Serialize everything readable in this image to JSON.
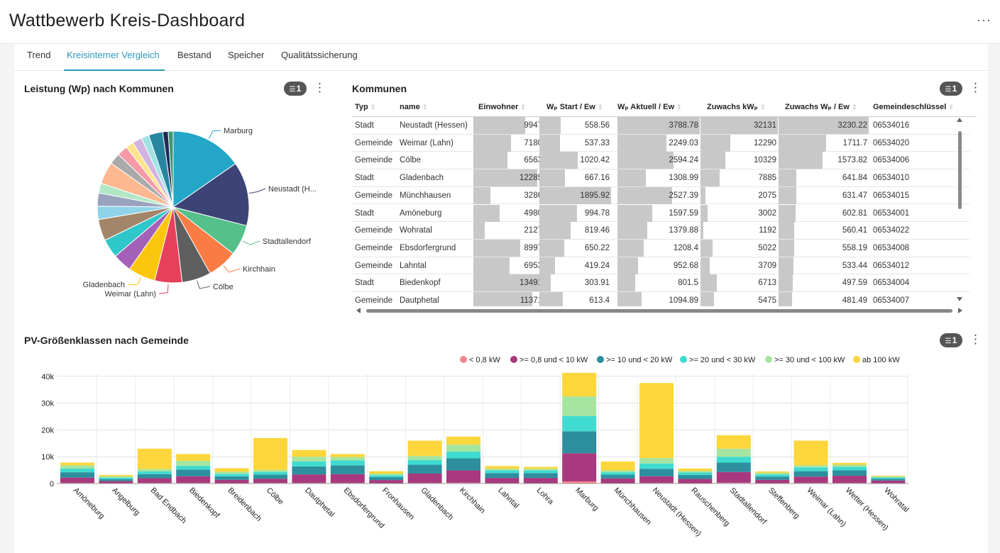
{
  "header": {
    "title": "Wattbewerb Kreis-Dashboard",
    "more": "···"
  },
  "tabs": [
    "Trend",
    "Kreisinterner Vergleich",
    "Bestand",
    "Speicher",
    "Qualitätssicherung"
  ],
  "active_tab": "Kreisinterner Vergleich",
  "pie_panel": {
    "title": "Leistung (Wp) nach Kommunen",
    "filter_count": "1",
    "labels": [
      "Marburg",
      "Neustadt (H...",
      "Stadtallendorf",
      "Kirchhain",
      "Cölbe",
      "Weimar (Lahn)",
      "Gladenbach"
    ]
  },
  "table_panel": {
    "title": "Kommunen",
    "filter_count": "1",
    "columns": [
      "Typ",
      "name",
      "Einwohner",
      "Wₚ Start / Ew",
      "Wₚ Aktuell / Ew",
      "Zuwachs kWₚ",
      "Zuwachs Wₚ / Ew",
      "Gemeindeschlüssel"
    ],
    "rows": [
      [
        "Stadt",
        "Neustadt (Hessen)",
        "9947",
        "558.56",
        "3788.78",
        "32131",
        "3230.22",
        "06534016"
      ],
      [
        "Gemeinde",
        "Weimar (Lahn)",
        "7180",
        "537.33",
        "2249.03",
        "12290",
        "1711.7",
        "06534020"
      ],
      [
        "Gemeinde",
        "Cölbe",
        "6563",
        "1020.42",
        "2594.24",
        "10329",
        "1573.82",
        "06534006"
      ],
      [
        "Stadt",
        "Gladenbach",
        "12285",
        "667.16",
        "1308.99",
        "7885",
        "641.84",
        "06534010"
      ],
      [
        "Gemeinde",
        "Münchhausen",
        "3286",
        "1895.92",
        "2527.39",
        "2075",
        "631.47",
        "06534015"
      ],
      [
        "Stadt",
        "Amöneburg",
        "4980",
        "994.78",
        "1597.59",
        "3002",
        "602.81",
        "06534001"
      ],
      [
        "Gemeinde",
        "Wohratal",
        "2127",
        "819.46",
        "1379.88",
        "1192",
        "560.41",
        "06534022"
      ],
      [
        "Gemeinde",
        "Ebsdorfergrund",
        "8997",
        "650.22",
        "1208.4",
        "5022",
        "558.19",
        "06534008"
      ],
      [
        "Gemeinde",
        "Lahntal",
        "6953",
        "419.24",
        "952.68",
        "3709",
        "533.44",
        "06534012"
      ],
      [
        "Stadt",
        "Biedenkopf",
        "13491",
        "303.91",
        "801.5",
        "6713",
        "497.59",
        "06534004"
      ],
      [
        "Gemeinde",
        "Dautphetal",
        "11371",
        "613.4",
        "1094.89",
        "5475",
        "481.49",
        "06534007"
      ]
    ]
  },
  "chart_panel": {
    "title": "PV-Größenklassen nach Gemeinde",
    "filter_count": "1"
  },
  "chart_data": [
    {
      "type": "pie",
      "title": "Leistung (Wp) nach Kommunen",
      "labels": [
        "Marburg",
        "Neustadt (Hessen)",
        "Stadtallendorf",
        "Kirchhain",
        "Cölbe",
        "Weimar (Lahn)",
        "Gladenbach",
        "Biedenkopf",
        "Ebsdorfergrund",
        "Dautphetal",
        "Amöneburg",
        "Wetter (Hessen)",
        "Breidenbach",
        "Bad Endbach",
        "Lahntal",
        "Lohra",
        "Fronhausen",
        "Rauschenberg",
        "Steffenberg",
        "Münchhausen",
        "Angelburg",
        "Wohratal"
      ],
      "values": [
        42000,
        37500,
        18000,
        17500,
        17000,
        16000,
        16000,
        11000,
        11000,
        12500,
        7800,
        7700,
        5700,
        13000,
        6500,
        6200,
        4600,
        5600,
        4500,
        8200,
        3200,
        2900
      ],
      "colors": [
        "#23a6c8",
        "#3c4477",
        "#55c089",
        "#fb7b45",
        "#5f5f5f",
        "#e6405b",
        "#fcc60d",
        "#a461b8",
        "#2fc7c9",
        "#a3866a",
        "#8fd3e8",
        "#9aa3bd",
        "#b1e7c5",
        "#fdb891",
        "#aaaaaa",
        "#f59aa6",
        "#fde38c",
        "#d1b4df",
        "#9fe3e4",
        "#27869f",
        "#212a54",
        "#3c9a70"
      ]
    },
    {
      "type": "bar",
      "stacked": true,
      "title": "PV-Größenklassen nach Gemeinde",
      "categories": [
        "Amöneburg",
        "Angelburg",
        "Bad Endbach",
        "Biedenkopf",
        "Breidenbach",
        "Cölbe",
        "Dautphetal",
        "Ebsdorfergrund",
        "Fronhausen",
        "Gladenbach",
        "Kirchhain",
        "Lahntal",
        "Lohra",
        "Marburg",
        "Münchhausen",
        "Neustadt (Hessen)",
        "Rauschenberg",
        "Stadtallendorf",
        "Steffenberg",
        "Weimar (Lahn)",
        "Wetter (Hessen)",
        "Wohratal"
      ],
      "series": [
        {
          "name": "< 0,8 kW",
          "color": "#f7868e",
          "values": [
            200,
            100,
            200,
            200,
            100,
            200,
            200,
            200,
            100,
            200,
            300,
            100,
            100,
            800,
            100,
            200,
            100,
            300,
            100,
            200,
            200,
            100
          ]
        },
        {
          "name": ">= 0,8 und < 10 kW",
          "color": "#a8397e",
          "values": [
            2000,
            800,
            1800,
            2500,
            1300,
            1600,
            3200,
            3300,
            1200,
            3500,
            4600,
            2000,
            2000,
            10500,
            1800,
            2500,
            1600,
            4000,
            1300,
            2400,
            2700,
            1000
          ]
        },
        {
          "name": ">= 10 und < 20 kW",
          "color": "#2d8f9e",
          "values": [
            2000,
            700,
            1500,
            2500,
            1300,
            1500,
            3000,
            3300,
            1100,
            3300,
            4500,
            1800,
            1800,
            8200,
            1400,
            2800,
            1500,
            3500,
            1200,
            2000,
            2000,
            700
          ]
        },
        {
          "name": ">= 20 und < 30 kW",
          "color": "#40dbd0",
          "values": [
            1400,
            600,
            1000,
            1400,
            900,
            1000,
            1800,
            1800,
            700,
            1800,
            2500,
            1000,
            1000,
            5700,
            900,
            2000,
            900,
            2200,
            800,
            1400,
            1300,
            500
          ]
        },
        {
          "name": ">= 30 und < 100 kW",
          "color": "#a6e5a0",
          "values": [
            1200,
            500,
            900,
            1900,
            800,
            800,
            1800,
            1300,
            600,
            1500,
            2600,
            600,
            600,
            7300,
            700,
            2000,
            600,
            3000,
            600,
            800,
            800,
            300
          ]
        },
        {
          "name": "ab 100 kW",
          "color": "#fcd63b",
          "values": [
            1000,
            500,
            7600,
            2500,
            1300,
            11900,
            2500,
            1100,
            900,
            5700,
            3000,
            1000,
            700,
            8800,
            3300,
            28000,
            900,
            5000,
            500,
            9200,
            700,
            300
          ]
        }
      ],
      "y_ticks": [
        "0",
        "10k",
        "20k",
        "30k",
        "40k"
      ],
      "ylim": [
        0,
        41000
      ]
    }
  ]
}
